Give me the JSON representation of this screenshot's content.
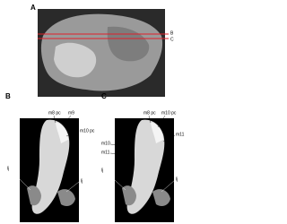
{
  "panels": [
    {
      "label": "A",
      "markers": [
        "B",
        "C"
      ]
    },
    {
      "label": "B",
      "annotations": [
        "m8 pc",
        "m9",
        "m10 pc",
        "lj",
        "lj"
      ]
    },
    {
      "label": "C",
      "annotations": [
        "m8 pc",
        "m10 pc",
        "m11",
        "m10",
        "m11",
        "lj",
        "lj"
      ]
    }
  ]
}
